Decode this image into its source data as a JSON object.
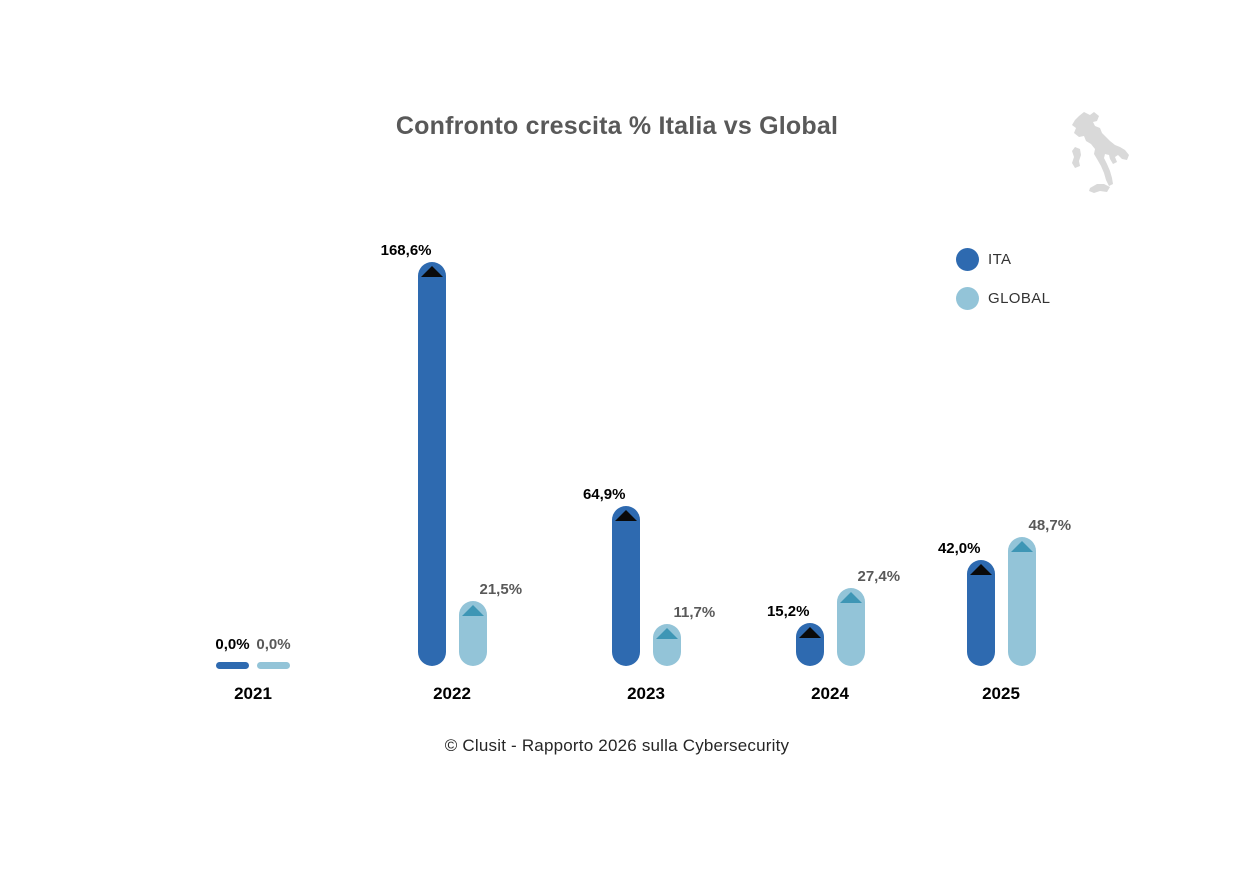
{
  "title": "Confronto crescita % Italia vs Global",
  "footer": "© Clusit - Rapporto 2026 sulla Cybersecurity",
  "colors": {
    "ita": "#2e6ab0",
    "global": "#93c4d8",
    "ita_arrow": "#0a0a0a",
    "global_arrow": "#3e96b5",
    "title_text": "#595959",
    "ita_value_label": "#000000",
    "global_value_label": "#595959",
    "year_label": "#000000",
    "map_icon": "#d9d9d9"
  },
  "legend": {
    "items": [
      {
        "label": "ITA",
        "color": "#2e6ab0"
      },
      {
        "label": "GLOBAL",
        "color": "#93c4d8"
      }
    ]
  },
  "chart_data": {
    "type": "bar",
    "title": "Confronto crescita % Italia vs Global",
    "categories": [
      "2021",
      "2022",
      "2023",
      "2024",
      "2025"
    ],
    "series": [
      {
        "name": "ITA",
        "color": "#2e6ab0",
        "arrow_color": "#0a0a0a",
        "values": [
          0,
          168.6,
          64.9,
          15.2,
          42.0
        ],
        "labels": [
          "0,0%",
          "168,6%",
          "64,9%",
          "15,2%",
          "42,0%"
        ]
      },
      {
        "name": "GLOBAL",
        "color": "#93c4d8",
        "arrow_color": "#3e96b5",
        "values": [
          0,
          21.5,
          11.7,
          27.4,
          48.7
        ],
        "labels": [
          "0,0%",
          "21,5%",
          "11,7%",
          "27,4%",
          "48,7%"
        ]
      }
    ],
    "xlabel": "",
    "ylabel": "",
    "value_format": "percent, comma decimal",
    "ylim": [
      0,
      180
    ],
    "grid": false,
    "axes_visible": false,
    "legend_position": "right",
    "source_caption": "© Clusit - Rapporto 2026 sulla Cybersecurity"
  }
}
